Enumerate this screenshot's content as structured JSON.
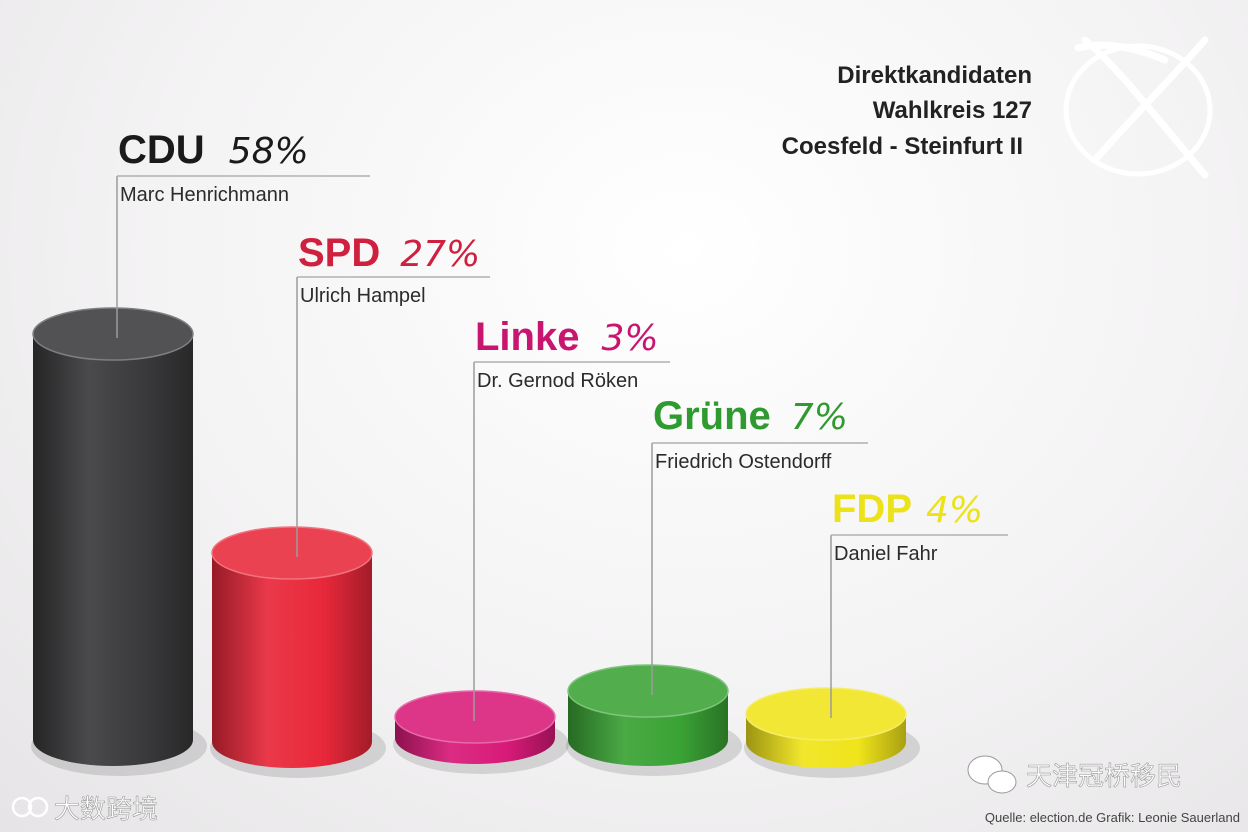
{
  "header": {
    "title_lines": [
      "Direktkandidaten",
      "Wahlkreis 127",
      "Coesfeld - Steinfurt II"
    ]
  },
  "chart_data": {
    "type": "bar",
    "title": "Direktkandidaten Wahlkreis 127 Coesfeld - Steinfurt II",
    "categories": [
      "CDU",
      "SPD",
      "Linke",
      "Grüne",
      "FDP"
    ],
    "values": [
      58,
      27,
      3,
      7,
      4
    ],
    "value_labels": [
      "58%",
      "27%",
      "3%",
      "7%",
      "4%"
    ],
    "candidates": [
      "Marc Henrichmann",
      "Ulrich Hampel",
      "Dr. Gernod Röken",
      "Friedrich Ostendorff",
      "Daniel Fahr"
    ],
    "colors": [
      "#3a393b",
      "#e8283a",
      "#d81a78",
      "#3aa335",
      "#f0e41a"
    ],
    "label_colors": [
      "#1a1a1a",
      "#d0203f",
      "#c8156f",
      "#2f9a2f",
      "#ece21a"
    ],
    "unit": "%",
    "ylim": [
      0,
      60
    ],
    "xlabel": "",
    "ylabel": ""
  },
  "footer": {
    "source": "Quelle: election.de Grafik: Leonie Sauerland",
    "watermark_left": "大数跨境",
    "watermark_right": "天津冠桥移民"
  }
}
